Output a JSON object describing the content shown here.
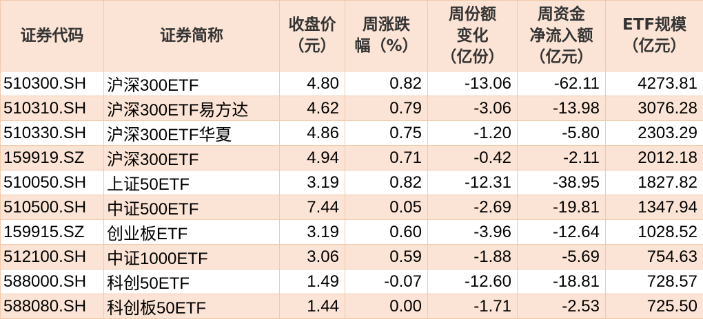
{
  "headers": [
    "证券代码",
    "证券简称",
    "收盘价\n（元）",
    "周涨跌\n幅（%）",
    "周份额\n变化\n（亿份）",
    "周资金\n净流入额\n（亿元）",
    "ETF规模\n（亿元）"
  ],
  "rows": [
    [
      "510300.SH",
      "沪深300ETF",
      "4.80",
      "0.82",
      "-13.06",
      "-62.11",
      "4273.81"
    ],
    [
      "510310.SH",
      "沪深300ETF易方达",
      "4.62",
      "0.79",
      "-3.06",
      "-13.98",
      "3076.28"
    ],
    [
      "510330.SH",
      "沪深300ETF华夏",
      "4.86",
      "0.75",
      "-1.20",
      "-5.80",
      "2303.29"
    ],
    [
      "159919.SZ",
      "沪深300ETF",
      "4.94",
      "0.71",
      "-0.42",
      "-2.11",
      "2012.18"
    ],
    [
      "510050.SH",
      "上证50ETF",
      "3.19",
      "0.82",
      "-12.31",
      "-38.95",
      "1827.82"
    ],
    [
      "510500.SH",
      "中证500ETF",
      "7.44",
      "0.05",
      "-2.69",
      "-19.81",
      "1347.94"
    ],
    [
      "159915.SZ",
      "创业板ETF",
      "3.19",
      "0.60",
      "-3.96",
      "-12.64",
      "1028.52"
    ],
    [
      "512100.SH",
      "中证1000ETF",
      "3.06",
      "0.59",
      "-1.88",
      "-5.69",
      "754.63"
    ],
    [
      "588000.SH",
      "科创50ETF",
      "1.49",
      "-0.07",
      "-12.60",
      "-18.81",
      "728.57"
    ],
    [
      "588080.SH",
      "科创板50ETF",
      "1.44",
      "0.00",
      "-1.71",
      "-2.53",
      "725.50"
    ]
  ],
  "colors": {
    "stripe": "#fbe4d5",
    "border": "#f1c9aa"
  }
}
